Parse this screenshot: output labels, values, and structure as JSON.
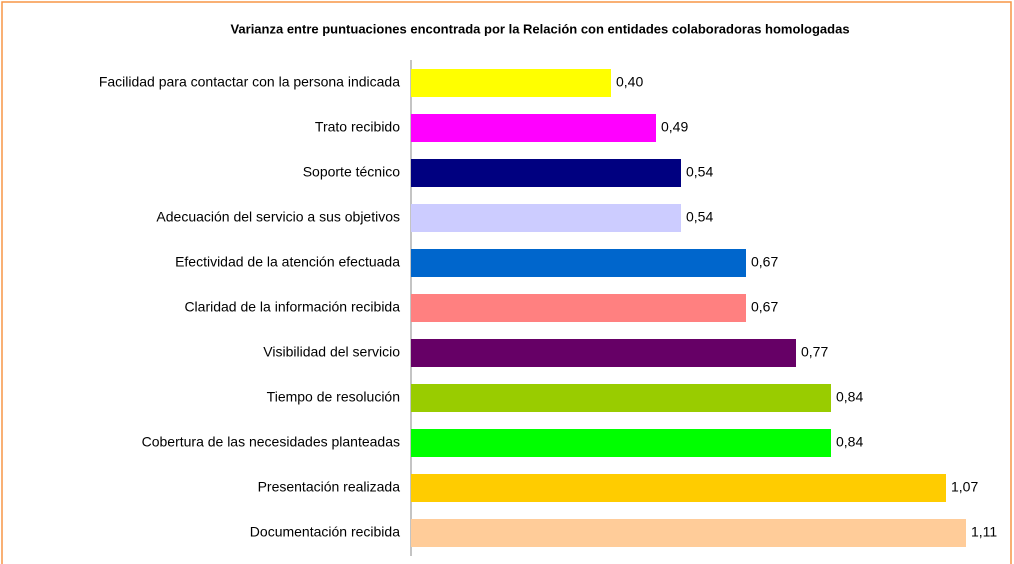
{
  "chart_data": {
    "type": "bar",
    "orientation": "horizontal",
    "title": "Varianza entre puntuaciones encontrada por la Relación con entidades colaboradoras homologadas",
    "categories": [
      "Facilidad para contactar con la persona indicada",
      "Trato recibido",
      "Soporte técnico",
      "Adecuación del servicio a sus objetivos",
      "Efectividad de la atención efectuada",
      "Claridad de la información recibida",
      "Visibilidad del servicio",
      "Tiempo de resolución",
      "Cobertura de las necesidades planteadas",
      "Presentación realizada",
      "Documentación recibida"
    ],
    "values": [
      0.4,
      0.49,
      0.54,
      0.54,
      0.67,
      0.67,
      0.77,
      0.84,
      0.84,
      1.07,
      1.11
    ],
    "value_labels": [
      "0,40",
      "0,49",
      "0,54",
      "0,54",
      "0,67",
      "0,67",
      "0,77",
      "0,84",
      "0,84",
      "1,07",
      "1,11"
    ],
    "colors": [
      "#ffff00",
      "#ff00ff",
      "#000080",
      "#ccccff",
      "#0066cc",
      "#ff8080",
      "#660066",
      "#99cc00",
      "#00ff00",
      "#ffcc00",
      "#ffcc99"
    ]
  }
}
